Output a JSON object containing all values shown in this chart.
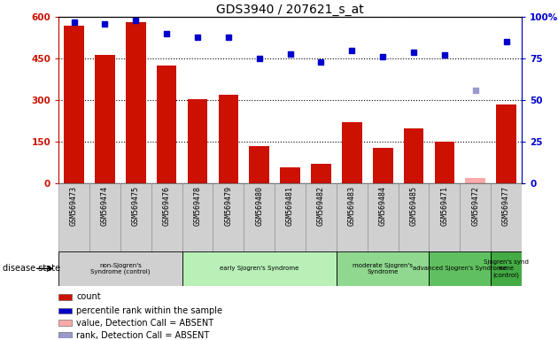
{
  "title": "GDS3940 / 207621_s_at",
  "samples": [
    "GSM569473",
    "GSM569474",
    "GSM569475",
    "GSM569476",
    "GSM569478",
    "GSM569479",
    "GSM569480",
    "GSM569481",
    "GSM569482",
    "GSM569483",
    "GSM569484",
    "GSM569485",
    "GSM569471",
    "GSM569472",
    "GSM569477"
  ],
  "counts": [
    570,
    465,
    580,
    425,
    305,
    320,
    135,
    60,
    70,
    220,
    130,
    200,
    150,
    20,
    285
  ],
  "percentile_ranks": [
    97,
    96,
    98,
    90,
    88,
    88,
    75,
    78,
    73,
    80,
    76,
    79,
    77,
    56,
    85
  ],
  "absent_flags": [
    false,
    false,
    false,
    false,
    false,
    false,
    false,
    false,
    false,
    false,
    false,
    false,
    false,
    true,
    false
  ],
  "absent_rank_flags": [
    false,
    false,
    false,
    false,
    false,
    false,
    false,
    false,
    false,
    false,
    false,
    false,
    false,
    true,
    false
  ],
  "disease_groups": [
    {
      "label": "non-Sjogren's\nSyndrome (control)",
      "start": 0,
      "end": 3,
      "color": "#d0d0d0"
    },
    {
      "label": "early Sjogren's Syndrome",
      "start": 4,
      "end": 8,
      "color": "#b8f0b8"
    },
    {
      "label": "moderate Sjogren's\nSyndrome",
      "start": 9,
      "end": 11,
      "color": "#90d890"
    },
    {
      "label": "advanced Sjogren's Syndrome",
      "start": 12,
      "end": 13,
      "color": "#60c060"
    },
    {
      "label": "Sjogren's synd\nrome\n(control)",
      "start": 14,
      "end": 14,
      "color": "#44aa44"
    }
  ],
  "bar_color_present": "#cc1100",
  "bar_color_absent": "#ffaaaa",
  "dot_color_present": "#0000cc",
  "dot_color_absent": "#9999cc",
  "ylim_left": [
    0,
    600
  ],
  "ylim_right": [
    0,
    100
  ],
  "yticks_left": [
    0,
    150,
    300,
    450,
    600
  ],
  "ytick_labels_left": [
    "0",
    "150",
    "300",
    "450",
    "600"
  ],
  "ytick_labels_right": [
    "0",
    "25",
    "50",
    "75",
    "100%"
  ],
  "legend_items": [
    {
      "label": "count",
      "color": "#cc1100"
    },
    {
      "label": "percentile rank within the sample",
      "color": "#0000cc"
    },
    {
      "label": "value, Detection Call = ABSENT",
      "color": "#ffaaaa"
    },
    {
      "label": "rank, Detection Call = ABSENT",
      "color": "#9999cc"
    }
  ]
}
